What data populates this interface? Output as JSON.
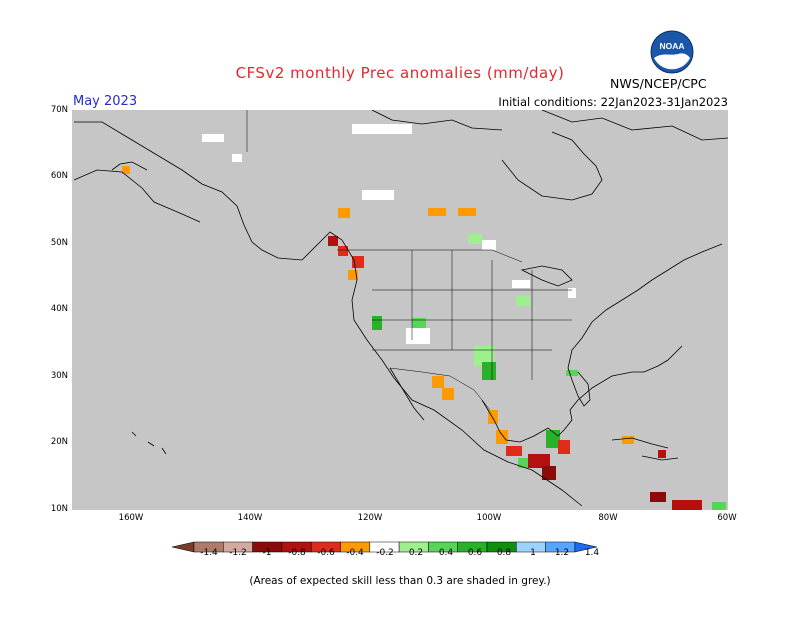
{
  "title": "CFSv2 monthly Prec anomalies (mm/day)",
  "period": "May 2023",
  "initial_conditions": "Initial conditions: 22Jan2023-31Jan2023",
  "agency": "NWS/NCEP/CPC",
  "logo_text": "NOAA",
  "footnote": "(Areas of expected skill less than 0.3 are shaded in grey.)",
  "map": {
    "lon_range": [
      -170,
      -60
    ],
    "lat_range": [
      10,
      70
    ],
    "lat_ticks": [
      "70N",
      "60N",
      "50N",
      "40N",
      "30N",
      "20N",
      "10N"
    ],
    "lon_ticks": [
      "160W",
      "140W",
      "120W",
      "100W",
      "80W",
      "60W"
    ],
    "background_color": "#c6c6c6",
    "land_outline_color": "#000000"
  },
  "colorbar": {
    "labels": [
      "-1.4",
      "-1.2",
      "-1",
      "-0.8",
      "-0.6",
      "-0.4",
      "-0.2",
      "0.2",
      "0.4",
      "0.6",
      "0.8",
      "1",
      "1.2",
      "1.4"
    ],
    "colors": [
      "#7a3c2a",
      "#b07a6a",
      "#d4aaa0",
      "#8b0a0a",
      "#b51010",
      "#e02b1b",
      "#ff9a00",
      "#ffffff",
      "#9df08b",
      "#58d457",
      "#2ab12a",
      "#0e8f0e",
      "#9fd3ff",
      "#56a6ff",
      "#1f68f0"
    ]
  }
}
